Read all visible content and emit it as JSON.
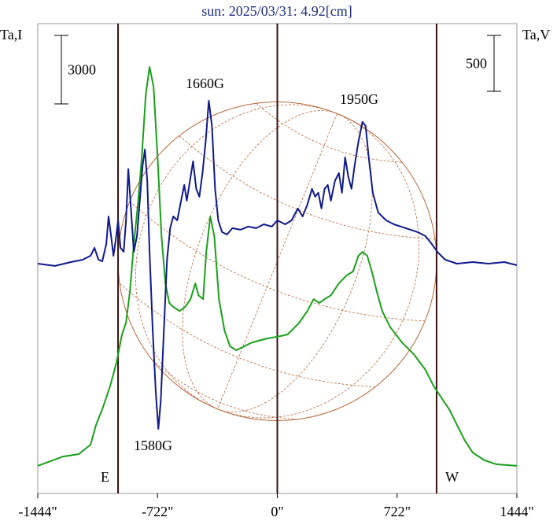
{
  "chart_data": {
    "type": "line",
    "title": "sun: 2025/03/31: 4.92[cm]",
    "annotations": [
      "1660G",
      "1950G",
      "1580G",
      "E",
      "W"
    ],
    "xlim": [
      -1444,
      1444
    ],
    "xticks": [
      {
        "value": -1444,
        "label": "-1444\""
      },
      {
        "value": -722,
        "label": "-722\""
      },
      {
        "value": 0,
        "label": "0\""
      },
      {
        "value": 722,
        "label": "722\""
      },
      {
        "value": 1444,
        "label": "1444\""
      }
    ],
    "ylim": [
      0,
      20600
    ],
    "y2lim": [
      -2056,
      2147
    ],
    "vlines": [
      -960,
      0,
      960
    ],
    "vline_color": "#3a1010",
    "disk_radius": 960,
    "disk_color": "#b8683a",
    "scale_bars": [
      {
        "value": 3000,
        "axis": "y"
      },
      {
        "value": 500,
        "axis": "y2"
      }
    ],
    "series": [
      {
        "name": "Ta,I",
        "color": "#1aa01a",
        "axis": "y",
        "x": [
          -1444,
          -1292,
          -1197,
          -1126,
          -1093,
          -1055,
          -1007,
          -969,
          -936,
          -912,
          -888,
          -865,
          -841,
          -817,
          -793,
          -770,
          -746,
          -722,
          -698,
          -675,
          -651,
          -627,
          -589,
          -556,
          -523,
          -494,
          -475,
          -447,
          -428,
          -404,
          -380,
          -352,
          -318,
          -285,
          -247,
          -200,
          -152,
          -57,
          0,
          62,
          133,
          181,
          219,
          252,
          285,
          323,
          371,
          418,
          456,
          489,
          513,
          542,
          570,
          599,
          632,
          679,
          751,
          822,
          893,
          941,
          988,
          1036,
          1083,
          1131,
          1178,
          1250,
          1321,
          1444
        ],
        "values": [
          1210,
          1620,
          1725,
          2140,
          3000,
          3690,
          4730,
          5760,
          6970,
          7490,
          8870,
          10940,
          12660,
          14730,
          17490,
          18700,
          17840,
          14730,
          11280,
          9210,
          8350,
          8180,
          8000,
          8180,
          8520,
          9210,
          8690,
          8520,
          10590,
          12140,
          11280,
          8520,
          7140,
          6450,
          6280,
          6450,
          6620,
          6800,
          6870,
          6970,
          7490,
          8000,
          8520,
          8350,
          8520,
          8690,
          9210,
          9560,
          9730,
          10420,
          10590,
          10420,
          9730,
          8870,
          8000,
          7310,
          6620,
          6110,
          5420,
          4730,
          4210,
          3690,
          3000,
          2310,
          1790,
          1450,
          1280,
          1210
        ]
      },
      {
        "name": "Ta,V",
        "color": "#101a8c",
        "axis": "y2",
        "x": [
          -1444,
          -1340,
          -1245,
          -1173,
          -1126,
          -1102,
          -1078,
          -1055,
          -1031,
          -1017,
          -1002,
          -988,
          -974,
          -960,
          -945,
          -926,
          -912,
          -898,
          -884,
          -865,
          -846,
          -827,
          -812,
          -798,
          -784,
          -770,
          -751,
          -732,
          -717,
          -703,
          -684,
          -665,
          -646,
          -627,
          -603,
          -580,
          -561,
          -546,
          -527,
          -508,
          -489,
          -470,
          -451,
          -432,
          -413,
          -394,
          -375,
          -356,
          -333,
          -304,
          -271,
          -223,
          -176,
          -128,
          -81,
          -33,
          0,
          48,
          86,
          124,
          152,
          181,
          209,
          228,
          247,
          266,
          285,
          304,
          323,
          347,
          371,
          390,
          409,
          428,
          447,
          466,
          489,
          513,
          532,
          551,
          575,
          608,
          656,
          703,
          774,
          846,
          893,
          931,
          964,
          1012,
          1083,
          1178,
          1273,
          1368,
          1444
        ],
        "values": [
          0,
          -21,
          14,
          35,
          70,
          141,
          35,
          21,
          176,
          422,
          246,
          70,
          211,
          387,
          141,
          106,
          387,
          845,
          528,
          106,
          246,
          598,
          880,
          1021,
          739,
          106,
          -599,
          -1162,
          -1478,
          -1232,
          -599,
          35,
          317,
          422,
          387,
          563,
          704,
          563,
          739,
          915,
          669,
          598,
          810,
          1091,
          1457,
          1232,
          669,
          387,
          282,
          260,
          317,
          303,
          331,
          317,
          352,
          331,
          387,
          352,
          387,
          493,
          422,
          528,
          669,
          598,
          634,
          493,
          669,
          704,
          563,
          739,
          810,
          634,
          950,
          774,
          669,
          880,
          1091,
          1267,
          1232,
          950,
          634,
          458,
          387,
          352,
          317,
          282,
          246,
          176,
          106,
          35,
          0,
          14,
          0,
          14,
          -14
        ]
      }
    ]
  }
}
